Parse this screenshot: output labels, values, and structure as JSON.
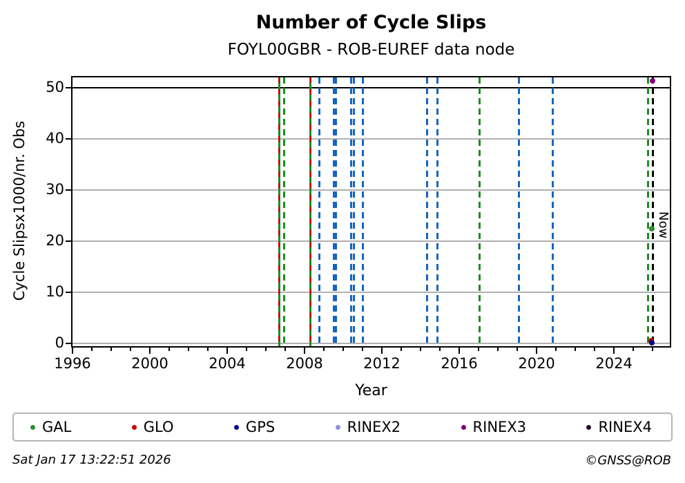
{
  "title": "Number of Cycle Slips",
  "subtitle": "FOYL00GBR - ROB-EUREF data node",
  "footer": {
    "timestamp": "Sat Jan 17 13:22:51 2026",
    "credit": "©GNSS@ROB"
  },
  "chart_data": {
    "type": "scatter",
    "title": "Number of Cycle Slips",
    "subtitle": "FOYL00GBR - ROB-EUREF data node",
    "xlabel": "Year",
    "ylabel": "Cycle Slipsx1000/nr. Obs",
    "xlim": [
      1995.93,
      2026.96
    ],
    "ylim": [
      -0.8,
      52.3
    ],
    "xticks": [
      1996,
      2000,
      2004,
      2008,
      2012,
      2016,
      2020,
      2024
    ],
    "yticks": [
      0,
      10,
      20,
      30,
      40,
      50
    ],
    "minor_xtick_step": 1,
    "grid": "horizontal-only",
    "grid_color": "#b0b0b0",
    "hlines": [
      {
        "y": 50,
        "color": "#000000",
        "style": "solid"
      }
    ],
    "event_lines": [
      {
        "x": 2006.68,
        "color": "#1e8b1e",
        "style": "solid"
      },
      {
        "x": 2006.68,
        "color": "#cc0000",
        "style": "dashed-overlay"
      },
      {
        "x": 2006.96,
        "color": "#1e8b1e",
        "style": "dashed"
      },
      {
        "x": 2008.32,
        "color": "#1e8b1e",
        "style": "solid"
      },
      {
        "x": 2008.32,
        "color": "#cc0000",
        "style": "dashed-overlay"
      },
      {
        "x": 2008.75,
        "color": "#1565c0",
        "style": "dashed"
      },
      {
        "x": 2009.5,
        "color": "#1565c0",
        "style": "dashed"
      },
      {
        "x": 2009.61,
        "color": "#1565c0",
        "style": "dashed"
      },
      {
        "x": 2010.4,
        "color": "#1565c0",
        "style": "dashed"
      },
      {
        "x": 2010.56,
        "color": "#1565c0",
        "style": "dashed"
      },
      {
        "x": 2011.03,
        "color": "#1565c0",
        "style": "dashed"
      },
      {
        "x": 2014.34,
        "color": "#1565c0",
        "style": "dashed"
      },
      {
        "x": 2014.88,
        "color": "#1565c0",
        "style": "dashed"
      },
      {
        "x": 2017.04,
        "color": "#1e8b1e",
        "style": "dashed"
      },
      {
        "x": 2019.07,
        "color": "#1565c0",
        "style": "dashed"
      },
      {
        "x": 2020.82,
        "color": "#1565c0",
        "style": "dashed"
      },
      {
        "x": 2025.75,
        "color": "#1e8b1e",
        "style": "dashed"
      }
    ],
    "now_marker": {
      "x": 2026.02,
      "label": "Now",
      "color": "#000000",
      "style": "dashed"
    },
    "points": [
      {
        "series": "GLO",
        "x": 2025.93,
        "y": 0.5,
        "color": "#cc0000"
      },
      {
        "series": "GPS",
        "x": 2025.96,
        "y": 0.15,
        "color": "#00008b"
      },
      {
        "series": "GAL",
        "x": 2025.95,
        "y": 22.4,
        "color": "#2e8b2e"
      },
      {
        "series": "RINEX3",
        "x": 2025.99,
        "y": 51.3,
        "color": "#800080"
      }
    ],
    "legend": [
      {
        "label": "GAL",
        "color": "#2e8b2e"
      },
      {
        "label": "GLO",
        "color": "#cc0000"
      },
      {
        "label": "GPS",
        "color": "#00008b"
      },
      {
        "label": "RINEX2",
        "color": "#8f8fd8"
      },
      {
        "label": "RINEX3",
        "color": "#800080"
      },
      {
        "label": "RINEX4",
        "color": "#2b0b2b"
      }
    ],
    "legend_position": "bottom"
  }
}
